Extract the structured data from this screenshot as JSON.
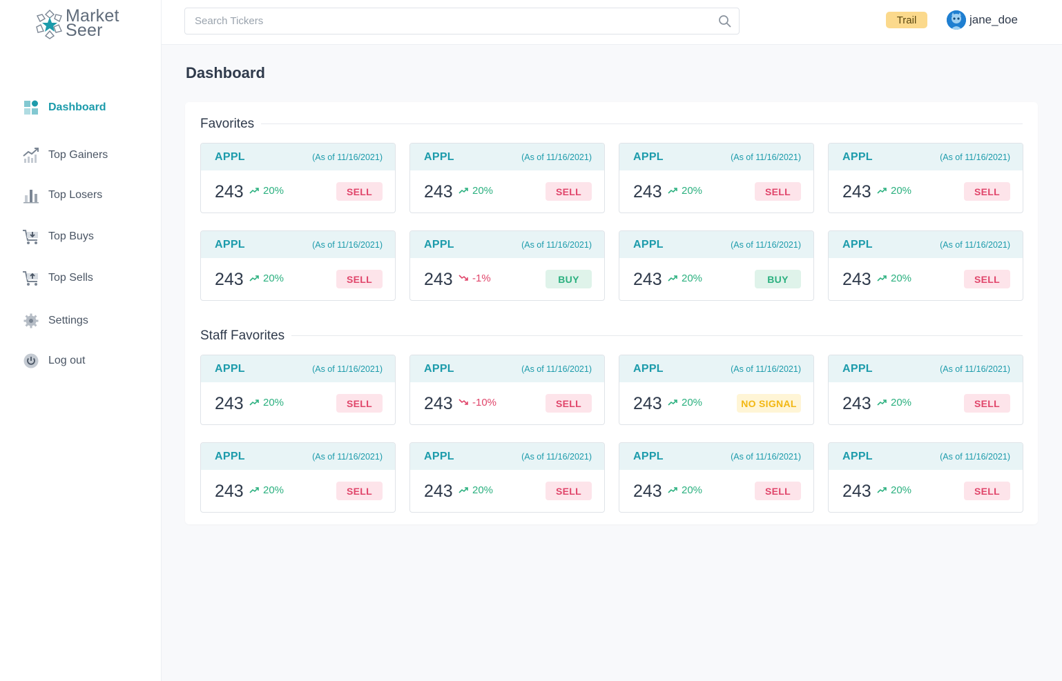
{
  "app": {
    "logo_text_line1": "Market",
    "logo_text_line2": "Seer",
    "accent_color": "#1c9bab"
  },
  "sidebar": {
    "items": [
      {
        "label": "Dashboard",
        "icon": "dashboard-icon",
        "active": true
      },
      {
        "label": "Top Gainers",
        "icon": "trending-up-chart-icon"
      },
      {
        "label": "Top Losers",
        "icon": "bar-chart-icon"
      },
      {
        "label": "Top Buys",
        "icon": "cart-download-icon"
      },
      {
        "label": "Top Sells",
        "icon": "cart-upload-icon"
      },
      {
        "label": "Settings",
        "icon": "gear-icon"
      },
      {
        "label": "Log out",
        "icon": "power-icon"
      }
    ]
  },
  "header": {
    "search_placeholder": "Search Tickers",
    "plan_badge": "Trail",
    "username": "jane_doe"
  },
  "main": {
    "title": "Dashboard",
    "favorites": {
      "title": "Favorites",
      "cards": [
        {
          "ticker": "APPL",
          "asof": "(As of 11/16/2021)",
          "price": "243",
          "change": "20%",
          "direction": "up",
          "signal": "SELL"
        },
        {
          "ticker": "APPL",
          "asof": "(As of 11/16/2021)",
          "price": "243",
          "change": "20%",
          "direction": "up",
          "signal": "SELL"
        },
        {
          "ticker": "APPL",
          "asof": "(As of 11/16/2021)",
          "price": "243",
          "change": "20%",
          "direction": "up",
          "signal": "SELL"
        },
        {
          "ticker": "APPL",
          "asof": "(As of 11/16/2021)",
          "price": "243",
          "change": "20%",
          "direction": "up",
          "signal": "SELL"
        },
        {
          "ticker": "APPL",
          "asof": "(As of 11/16/2021)",
          "price": "243",
          "change": "20%",
          "direction": "up",
          "signal": "SELL"
        },
        {
          "ticker": "APPL",
          "asof": "(As of 11/16/2021)",
          "price": "243",
          "change": "-1%",
          "direction": "down",
          "signal": "BUY"
        },
        {
          "ticker": "APPL",
          "asof": "(As of 11/16/2021)",
          "price": "243",
          "change": "20%",
          "direction": "up",
          "signal": "BUY"
        },
        {
          "ticker": "APPL",
          "asof": "(As of 11/16/2021)",
          "price": "243",
          "change": "20%",
          "direction": "up",
          "signal": "SELL"
        }
      ]
    },
    "staff_favorites": {
      "title": "Staff Favorites",
      "cards": [
        {
          "ticker": "APPL",
          "asof": "(As of 11/16/2021)",
          "price": "243",
          "change": "20%",
          "direction": "up",
          "signal": "SELL"
        },
        {
          "ticker": "APPL",
          "asof": "(As of 11/16/2021)",
          "price": "243",
          "change": "-10%",
          "direction": "down",
          "signal": "SELL"
        },
        {
          "ticker": "APPL",
          "asof": "(As of 11/16/2021)",
          "price": "243",
          "change": "20%",
          "direction": "up",
          "signal": "NO SIGNAL"
        },
        {
          "ticker": "APPL",
          "asof": "(As of 11/16/2021)",
          "price": "243",
          "change": "20%",
          "direction": "up",
          "signal": "SELL"
        },
        {
          "ticker": "APPL",
          "asof": "(As of 11/16/2021)",
          "price": "243",
          "change": "20%",
          "direction": "up",
          "signal": "SELL"
        },
        {
          "ticker": "APPL",
          "asof": "(As of 11/16/2021)",
          "price": "243",
          "change": "20%",
          "direction": "up",
          "signal": "SELL"
        },
        {
          "ticker": "APPL",
          "asof": "(As of 11/16/2021)",
          "price": "243",
          "change": "20%",
          "direction": "up",
          "signal": "SELL"
        },
        {
          "ticker": "APPL",
          "asof": "(As of 11/16/2021)",
          "price": "243",
          "change": "20%",
          "direction": "up",
          "signal": "SELL"
        }
      ]
    }
  },
  "colors": {
    "up": "#2bb07f",
    "down": "#e0456a",
    "sell_bg": "#fde4ea",
    "buy_bg": "#dff3ea",
    "nosignal_bg": "#fff5d6",
    "nosignal_text": "#f2b713",
    "plan_badge_bg": "#fbd98c"
  }
}
